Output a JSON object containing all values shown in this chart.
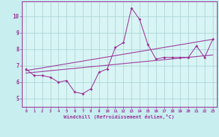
{
  "xlabel": "Windchill (Refroidissement éolien,°C)",
  "background_color": "#c8eef0",
  "plot_bg_color": "#d8f4f4",
  "line_color": "#993399",
  "grid_color": "#aad4d4",
  "xticks": [
    0,
    1,
    2,
    3,
    4,
    5,
    6,
    7,
    8,
    9,
    10,
    11,
    12,
    13,
    14,
    15,
    16,
    17,
    18,
    19,
    20,
    21,
    22,
    23
  ],
  "yticks": [
    5,
    6,
    7,
    8,
    9,
    10
  ],
  "xlim": [
    -0.5,
    23.5
  ],
  "ylim": [
    4.5,
    10.9
  ],
  "series1_x": [
    0,
    1,
    2,
    3,
    4,
    5,
    6,
    7,
    8,
    9,
    10,
    11,
    12,
    13,
    14,
    15,
    16,
    17,
    18,
    19,
    20,
    21,
    22,
    23
  ],
  "series1_y": [
    6.8,
    6.4,
    6.4,
    6.3,
    6.0,
    6.1,
    5.4,
    5.3,
    5.6,
    6.6,
    6.8,
    8.1,
    8.4,
    10.5,
    9.8,
    8.3,
    7.4,
    7.5,
    7.5,
    7.5,
    7.5,
    8.2,
    7.5,
    8.6
  ],
  "series2_x": [
    0,
    23
  ],
  "series2_y": [
    6.7,
    8.6
  ],
  "series3_x": [
    0,
    23
  ],
  "series3_y": [
    6.55,
    7.65
  ]
}
